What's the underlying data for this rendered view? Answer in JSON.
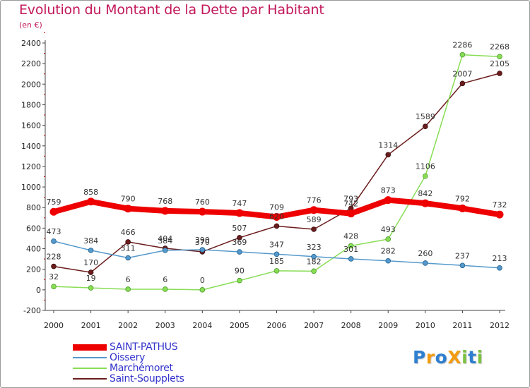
{
  "chart_data": {
    "type": "line",
    "title": "Evolution du Montant de la Dette par Habitant",
    "subtitle": "(en €)",
    "xlabel": "",
    "ylabel": "",
    "ylim": [
      -200,
      2400
    ],
    "y_ticks": [
      -200,
      0,
      200,
      400,
      600,
      800,
      1000,
      1200,
      1400,
      1600,
      1800,
      2000,
      2200,
      2400
    ],
    "grid": false,
    "legend_position": "bottom-left",
    "x": [
      "2000",
      "2001",
      "2002",
      "2003",
      "2004",
      "2005",
      "2006",
      "2007",
      "2008",
      "2009",
      "2010",
      "2011",
      "2012"
    ],
    "series": [
      {
        "name": "Saint-Soupplets",
        "color": "#6b1c1c",
        "values": [
          228,
          170,
          466,
          404,
          370,
          507,
          620,
          589,
          793,
          1314,
          1589,
          2007,
          2105
        ],
        "labels": [
          "228",
          "170",
          "466",
          "404",
          "370",
          "507",
          "620",
          "589",
          "793",
          "1314",
          "1589",
          "2007",
          "2105"
        ]
      },
      {
        "name": "Marchémoret",
        "color": "#88dd55",
        "values": [
          32,
          19,
          6,
          6,
          0,
          90,
          185,
          182,
          428,
          493,
          1106,
          2286,
          2268
        ],
        "labels": [
          "32",
          "19",
          "6",
          "6",
          "0",
          "90",
          "185",
          "182",
          "428",
          "493",
          "1106",
          "2286",
          "2268"
        ]
      },
      {
        "name": "Oissery",
        "color": "#5599cc",
        "values": [
          473,
          384,
          311,
          384,
          390,
          369,
          347,
          323,
          301,
          282,
          260,
          237,
          213
        ],
        "labels": [
          "473",
          "384",
          "311",
          "384",
          "390",
          "369",
          "347",
          "323",
          "301",
          "282",
          "260",
          "237",
          "213"
        ]
      },
      {
        "name": "SAINT-PATHUS",
        "color": "#ee0000",
        "values": [
          759,
          858,
          790,
          768,
          760,
          747,
          709,
          776,
          742,
          873,
          842,
          792,
          732
        ],
        "labels": [
          "759",
          "858",
          "790",
          "768",
          "760",
          "747",
          "709",
          "776",
          "742",
          "873",
          "842",
          "792",
          "732"
        ]
      }
    ],
    "legend": [
      "SAINT-PATHUS",
      "Oissery",
      "Marchémoret",
      "Saint-Soupplets"
    ]
  },
  "logo": {
    "text": "ProXiti",
    "letters": [
      "P",
      "r",
      "o",
      "X",
      "i",
      "t",
      "i"
    ],
    "colors": [
      "#2f7fd0",
      "#f39c12",
      "#2f7fd0",
      "#f39c12",
      "#7cc242",
      "#2f7fd0",
      "#7cc242"
    ]
  }
}
